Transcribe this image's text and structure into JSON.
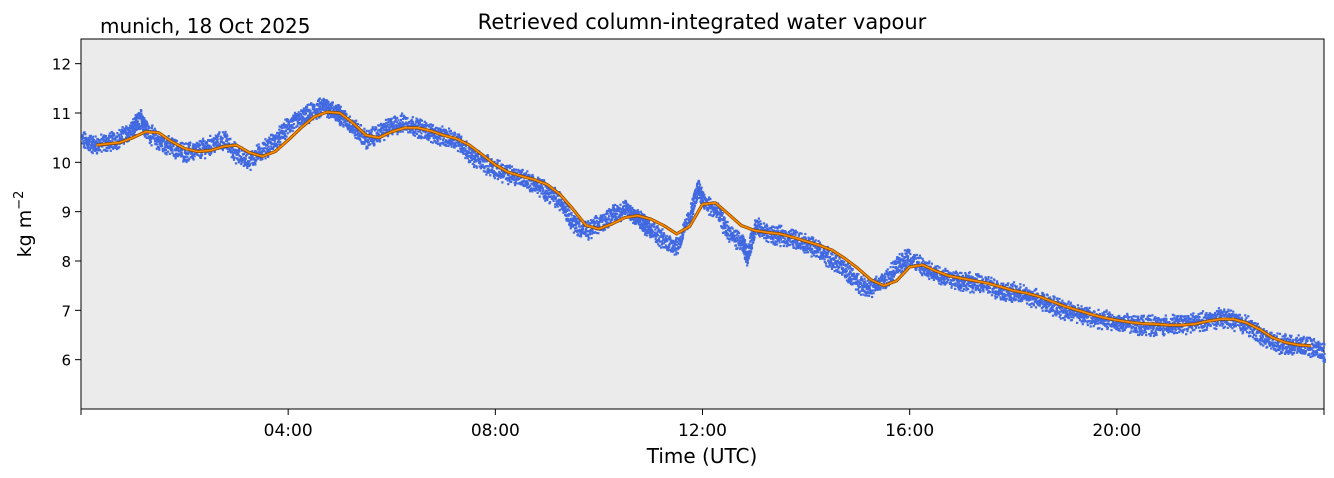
{
  "location_label": "munich, 18 Oct 2025",
  "chart_data": {
    "type": "line",
    "title": "Retrieved column-integrated water vapour",
    "xlabel": "Time (UTC)",
    "ylabel": "kg m",
    "ylabel_superscript": "−2",
    "x_unit": "hours UTC",
    "xlim": [
      0,
      24
    ],
    "ylim": [
      5.0,
      12.5
    ],
    "x_ticks": [
      0,
      4,
      8,
      12,
      16,
      20,
      24
    ],
    "x_tick_labels": [
      "04:00",
      "08:00",
      "12:00",
      "16:00",
      "20:00"
    ],
    "x_tick_label_hours": [
      4,
      8,
      12,
      16,
      20
    ],
    "y_ticks": [
      6,
      7,
      8,
      9,
      10,
      11,
      12
    ],
    "y_tick_labels": [
      "6",
      "7",
      "8",
      "9",
      "10",
      "11",
      "12"
    ],
    "grid": false,
    "background_color": "#ebebeb",
    "series": [
      {
        "kind": "scatter",
        "color": "#4169e1",
        "x": [
          0.0,
          0.25,
          0.5,
          0.75,
          1.0,
          1.15,
          1.25,
          1.5,
          1.75,
          2.0,
          2.25,
          2.5,
          2.75,
          3.0,
          3.25,
          3.5,
          3.75,
          4.0,
          4.25,
          4.5,
          4.7,
          4.9,
          5.0,
          5.25,
          5.5,
          5.75,
          6.0,
          6.25,
          6.5,
          6.75,
          7.0,
          7.25,
          7.5,
          7.75,
          8.0,
          8.25,
          8.5,
          8.75,
          9.0,
          9.25,
          9.5,
          9.75,
          10.0,
          10.25,
          10.5,
          10.7,
          10.85,
          11.0,
          11.25,
          11.5,
          11.75,
          11.9,
          12.0,
          12.25,
          12.5,
          12.75,
          12.85,
          13.0,
          13.25,
          13.5,
          13.75,
          14.0,
          14.25,
          14.5,
          14.75,
          15.0,
          15.25,
          15.5,
          15.75,
          15.95,
          16.25,
          16.5,
          16.75,
          17.0,
          17.25,
          17.5,
          17.75,
          18.0,
          18.25,
          18.5,
          18.75,
          19.0,
          19.25,
          19.5,
          19.75,
          20.0,
          20.25,
          20.5,
          20.75,
          21.0,
          21.25,
          21.5,
          21.75,
          22.0,
          22.25,
          22.5,
          22.75,
          23.0,
          23.25,
          23.5,
          23.75,
          24.0
        ],
        "y": [
          10.45,
          10.35,
          10.4,
          10.5,
          10.7,
          10.9,
          10.65,
          10.4,
          10.3,
          10.2,
          10.25,
          10.35,
          10.45,
          10.15,
          10.05,
          10.25,
          10.45,
          10.75,
          10.9,
          11.05,
          11.15,
          11.0,
          10.95,
          10.7,
          10.45,
          10.6,
          10.75,
          10.8,
          10.7,
          10.6,
          10.5,
          10.45,
          10.15,
          10.0,
          9.85,
          9.75,
          9.7,
          9.55,
          9.4,
          9.2,
          8.75,
          8.6,
          8.75,
          8.95,
          9.05,
          8.9,
          8.75,
          8.65,
          8.4,
          8.3,
          8.95,
          9.5,
          9.2,
          9.0,
          8.55,
          8.35,
          8.1,
          8.7,
          8.55,
          8.5,
          8.45,
          8.35,
          8.2,
          8.0,
          7.8,
          7.55,
          7.45,
          7.6,
          7.9,
          8.1,
          7.85,
          7.75,
          7.65,
          7.6,
          7.55,
          7.5,
          7.4,
          7.35,
          7.3,
          7.2,
          7.1,
          7.0,
          6.95,
          6.85,
          6.8,
          6.75,
          6.72,
          6.7,
          6.68,
          6.7,
          6.72,
          6.75,
          6.8,
          6.85,
          6.8,
          6.7,
          6.5,
          6.35,
          6.3,
          6.28,
          6.25,
          6.15
        ]
      },
      {
        "kind": "line",
        "color": "#ff8c00",
        "x": [
          0.3,
          0.75,
          1.0,
          1.25,
          1.5,
          1.75,
          2.0,
          2.25,
          2.5,
          2.75,
          3.0,
          3.25,
          3.5,
          3.75,
          4.0,
          4.25,
          4.5,
          4.75,
          5.0,
          5.25,
          5.5,
          5.75,
          6.0,
          6.25,
          6.5,
          6.75,
          7.0,
          7.25,
          7.5,
          7.75,
          8.0,
          8.25,
          8.5,
          8.75,
          9.0,
          9.25,
          9.5,
          9.75,
          10.0,
          10.25,
          10.5,
          10.75,
          11.0,
          11.25,
          11.5,
          11.75,
          12.0,
          12.25,
          12.5,
          12.75,
          13.0,
          13.25,
          13.5,
          13.75,
          14.0,
          14.25,
          14.5,
          14.75,
          15.0,
          15.25,
          15.5,
          15.75,
          16.0,
          16.25,
          16.5,
          16.75,
          17.0,
          17.25,
          17.5,
          17.75,
          18.0,
          18.25,
          18.5,
          18.75,
          19.0,
          19.25,
          19.5,
          19.75,
          20.0,
          20.25,
          20.5,
          20.75,
          21.0,
          21.25,
          21.5,
          21.75,
          22.0,
          22.25,
          22.5,
          22.75,
          23.0,
          23.25,
          23.5,
          23.75
        ],
        "y": [
          10.35,
          10.4,
          10.5,
          10.62,
          10.6,
          10.42,
          10.28,
          10.22,
          10.24,
          10.32,
          10.35,
          10.2,
          10.12,
          10.22,
          10.45,
          10.7,
          10.92,
          11.02,
          11.0,
          10.8,
          10.55,
          10.5,
          10.62,
          10.7,
          10.7,
          10.64,
          10.55,
          10.48,
          10.35,
          10.15,
          9.95,
          9.8,
          9.72,
          9.65,
          9.55,
          9.35,
          9.05,
          8.72,
          8.65,
          8.75,
          8.88,
          8.92,
          8.85,
          8.72,
          8.55,
          8.7,
          9.15,
          9.18,
          8.95,
          8.72,
          8.62,
          8.58,
          8.55,
          8.48,
          8.4,
          8.32,
          8.22,
          8.05,
          7.85,
          7.62,
          7.5,
          7.6,
          7.88,
          7.92,
          7.8,
          7.7,
          7.65,
          7.6,
          7.55,
          7.48,
          7.4,
          7.35,
          7.28,
          7.18,
          7.08,
          7.0,
          6.92,
          6.85,
          6.8,
          6.76,
          6.73,
          6.72,
          6.7,
          6.7,
          6.72,
          6.78,
          6.82,
          6.82,
          6.75,
          6.62,
          6.45,
          6.35,
          6.3,
          6.28
        ]
      }
    ]
  }
}
